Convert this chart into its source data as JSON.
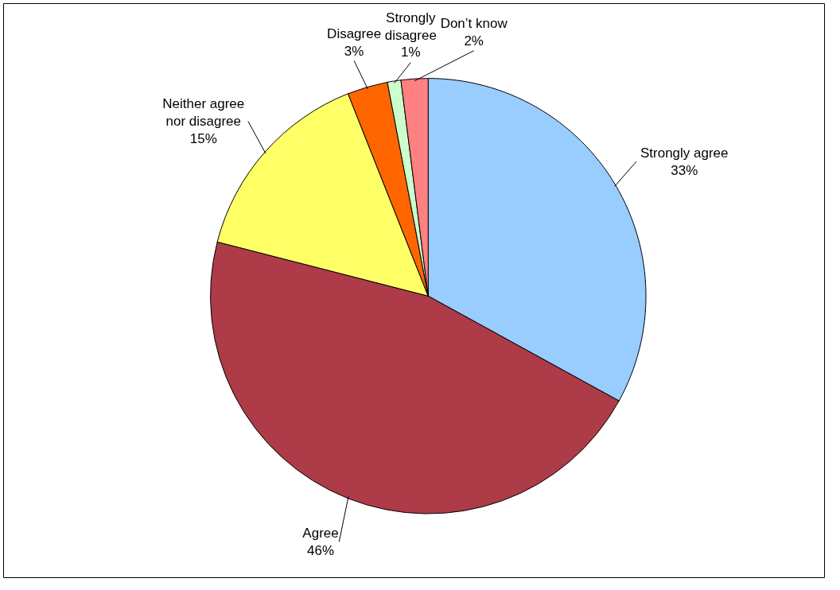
{
  "chart_data": {
    "type": "pie",
    "categories": [
      "Strongly agree",
      "Agree",
      "Neither agree nor disagree",
      "Disagree",
      "Strongly disagree",
      "Don’t know"
    ],
    "values": [
      33,
      46,
      15,
      3,
      1,
      2
    ],
    "value_labels": [
      "33%",
      "46%",
      "15%",
      "3%",
      "1%",
      "2%"
    ],
    "colors": [
      "#99ccff",
      "#ad3b48",
      "#ffff66",
      "#ff6600",
      "#ccffcc",
      "#ff8080"
    ]
  }
}
